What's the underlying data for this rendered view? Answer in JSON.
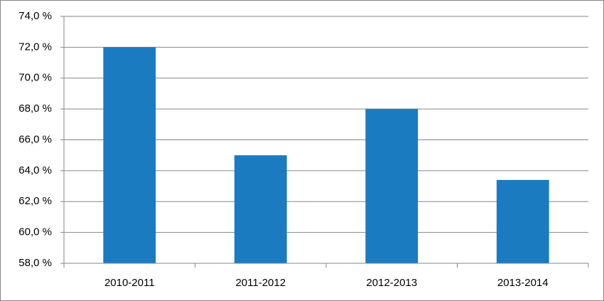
{
  "chart_data": {
    "type": "bar",
    "categories": [
      "2010-2011",
      "2011-2012",
      "2012-2013",
      "2013-2014"
    ],
    "values": [
      72,
      65,
      68,
      63.4
    ],
    "color": "#1a7bc1",
    "ylim": [
      58,
      74
    ],
    "yticks": [
      {
        "value": 58,
        "label": "58,0 %"
      },
      {
        "value": 60,
        "label": "60,0 %"
      },
      {
        "value": 62,
        "label": "62,0 %"
      },
      {
        "value": 64,
        "label": "64,0 %"
      },
      {
        "value": 66,
        "label": "66,0 %"
      },
      {
        "value": 68,
        "label": "68,0 %"
      },
      {
        "value": 70,
        "label": "70,0 %"
      },
      {
        "value": 72,
        "label": "72,0 %"
      },
      {
        "value": 74,
        "label": "74,0 %"
      }
    ],
    "grid": true
  }
}
